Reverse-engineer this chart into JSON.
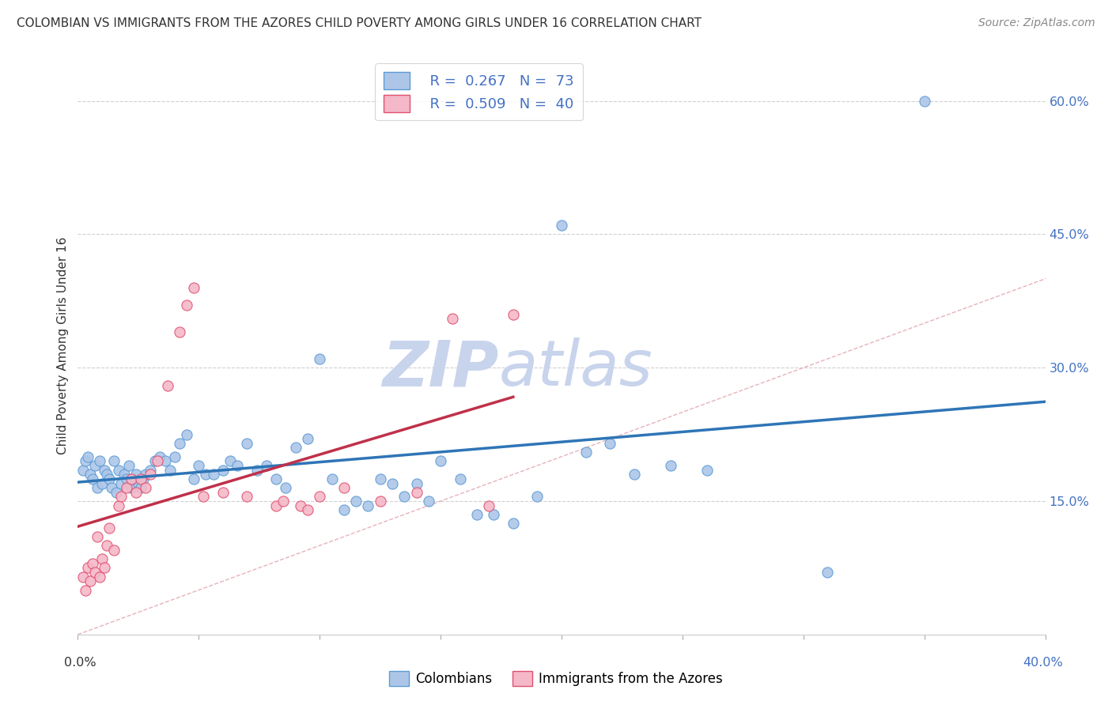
{
  "title": "COLOMBIAN VS IMMIGRANTS FROM THE AZORES CHILD POVERTY AMONG GIRLS UNDER 16 CORRELATION CHART",
  "source": "Source: ZipAtlas.com",
  "ylabel": "Child Poverty Among Girls Under 16",
  "r_colombians": "0.267",
  "n_colombians": "73",
  "r_azores": "0.509",
  "n_azores": "40",
  "legend_colombians": "Colombians",
  "legend_azores": "Immigrants from the Azores",
  "color_colombians_fill": "#adc6e8",
  "color_colombians_edge": "#5b9bd5",
  "color_azores_fill": "#f4b8c8",
  "color_azores_edge": "#e05070",
  "color_colombians_line": "#2e75b6",
  "color_azores_line": "#c0304a",
  "color_diagonal": "#e0a0a8",
  "color_grid": "#d0d0d0",
  "watermark_zip_color": "#c8d4ec",
  "watermark_atlas_color": "#c8d4ec",
  "background_color": "#ffffff",
  "xlim": [
    0.0,
    0.4
  ],
  "ylim": [
    0.0,
    0.65
  ],
  "yaxis_tick_vals": [
    0.15,
    0.3,
    0.45,
    0.6
  ],
  "colombians_x": [
    0.002,
    0.003,
    0.004,
    0.005,
    0.006,
    0.007,
    0.008,
    0.009,
    0.01,
    0.011,
    0.012,
    0.013,
    0.014,
    0.015,
    0.016,
    0.017,
    0.018,
    0.019,
    0.02,
    0.021,
    0.022,
    0.023,
    0.024,
    0.025,
    0.026,
    0.027,
    0.028,
    0.03,
    0.032,
    0.034,
    0.036,
    0.038,
    0.04,
    0.042,
    0.045,
    0.048,
    0.05,
    0.053,
    0.056,
    0.06,
    0.063,
    0.066,
    0.07,
    0.074,
    0.078,
    0.082,
    0.086,
    0.09,
    0.095,
    0.1,
    0.105,
    0.11,
    0.115,
    0.12,
    0.125,
    0.13,
    0.135,
    0.14,
    0.145,
    0.15,
    0.158,
    0.165,
    0.172,
    0.18,
    0.19,
    0.2,
    0.21,
    0.22,
    0.23,
    0.245,
    0.26,
    0.31,
    0.35
  ],
  "colombians_y": [
    0.185,
    0.195,
    0.2,
    0.18,
    0.175,
    0.19,
    0.165,
    0.195,
    0.17,
    0.185,
    0.18,
    0.175,
    0.165,
    0.195,
    0.16,
    0.185,
    0.17,
    0.18,
    0.175,
    0.19,
    0.165,
    0.175,
    0.18,
    0.17,
    0.165,
    0.175,
    0.18,
    0.185,
    0.195,
    0.2,
    0.195,
    0.185,
    0.2,
    0.215,
    0.225,
    0.175,
    0.19,
    0.18,
    0.18,
    0.185,
    0.195,
    0.19,
    0.215,
    0.185,
    0.19,
    0.175,
    0.165,
    0.21,
    0.22,
    0.31,
    0.175,
    0.14,
    0.15,
    0.145,
    0.175,
    0.17,
    0.155,
    0.17,
    0.15,
    0.195,
    0.175,
    0.135,
    0.135,
    0.125,
    0.155,
    0.46,
    0.205,
    0.215,
    0.18,
    0.19,
    0.185,
    0.07,
    0.6
  ],
  "azores_x": [
    0.002,
    0.003,
    0.004,
    0.005,
    0.006,
    0.007,
    0.008,
    0.009,
    0.01,
    0.011,
    0.012,
    0.013,
    0.015,
    0.017,
    0.018,
    0.02,
    0.022,
    0.024,
    0.026,
    0.028,
    0.03,
    0.033,
    0.037,
    0.042,
    0.048,
    0.052,
    0.06,
    0.07,
    0.082,
    0.092,
    0.1,
    0.11,
    0.125,
    0.14,
    0.155,
    0.17,
    0.18,
    0.085,
    0.095,
    0.045
  ],
  "azores_y": [
    0.065,
    0.05,
    0.075,
    0.06,
    0.08,
    0.07,
    0.11,
    0.065,
    0.085,
    0.075,
    0.1,
    0.12,
    0.095,
    0.145,
    0.155,
    0.165,
    0.175,
    0.16,
    0.175,
    0.165,
    0.18,
    0.195,
    0.28,
    0.34,
    0.39,
    0.155,
    0.16,
    0.155,
    0.145,
    0.145,
    0.155,
    0.165,
    0.15,
    0.16,
    0.355,
    0.145,
    0.36,
    0.15,
    0.14,
    0.37
  ]
}
